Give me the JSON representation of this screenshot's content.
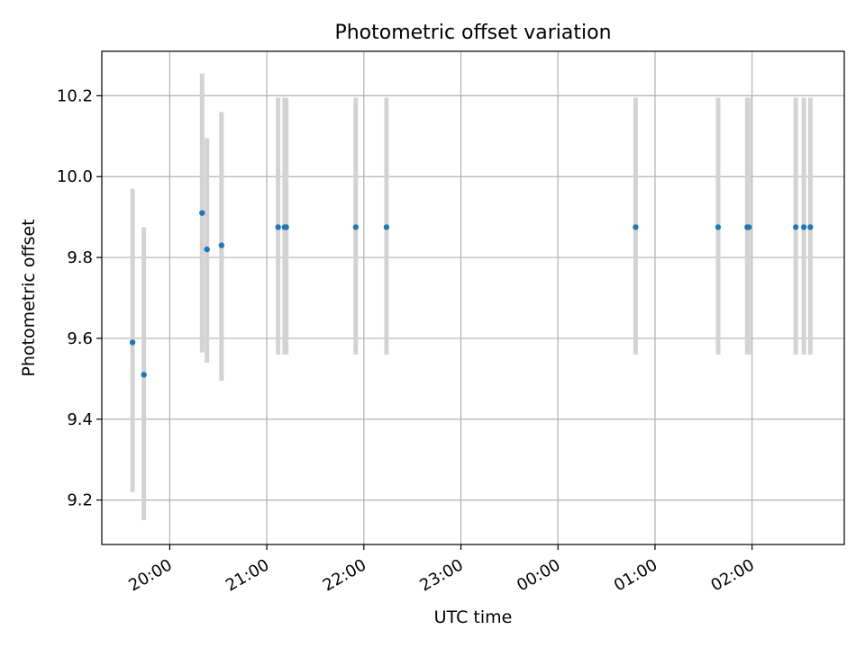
{
  "chart_data": {
    "type": "scatter",
    "title": "Photometric offset variation",
    "xlabel": "UTC time",
    "ylabel": "Photometric offset",
    "x_ticks": [
      "20:00",
      "21:00",
      "22:00",
      "23:00",
      "00:00",
      "01:00",
      "02:00"
    ],
    "x_tick_minutes": [
      0,
      60,
      120,
      180,
      240,
      300,
      360
    ],
    "xlim_minutes": [
      -42,
      417
    ],
    "y_ticks": [
      "9.2",
      "9.4",
      "9.6",
      "9.8",
      "10.0",
      "10.2"
    ],
    "ylim": [
      9.09,
      10.31
    ],
    "grid": true,
    "legend": "none",
    "series": [
      {
        "x": [
          "19:37",
          "19:44",
          "20:20",
          "20:23",
          "20:32",
          "21:07",
          "21:11",
          "21:12",
          "21:55",
          "22:14",
          "00:48",
          "01:39",
          "01:57",
          "01:58",
          "02:27",
          "02:32",
          "02:36"
        ],
        "x_minutes": [
          -23,
          -16,
          20,
          23,
          32,
          67,
          71,
          72,
          115,
          134,
          288,
          339,
          357,
          358,
          387,
          392,
          396
        ],
        "y": [
          9.59,
          9.51,
          9.91,
          9.82,
          9.83,
          9.875,
          9.875,
          9.875,
          9.875,
          9.875,
          9.875,
          9.875,
          9.875,
          9.875,
          9.875,
          9.875,
          9.875
        ],
        "yerr_low": [
          9.22,
          9.15,
          9.565,
          9.54,
          9.495,
          9.56,
          9.56,
          9.56,
          9.56,
          9.56,
          9.56,
          9.56,
          9.56,
          9.56,
          9.56,
          9.56,
          9.56
        ],
        "yerr_high": [
          9.97,
          9.875,
          10.255,
          10.095,
          10.16,
          10.195,
          10.195,
          10.195,
          10.195,
          10.195,
          10.195,
          10.195,
          10.195,
          10.195,
          10.195,
          10.195,
          10.195
        ]
      }
    ],
    "colors": {
      "point": "#1f77b4",
      "errorbar": "#d3d3d3",
      "grid": "#b0b0b0",
      "frame": "#000000"
    }
  }
}
